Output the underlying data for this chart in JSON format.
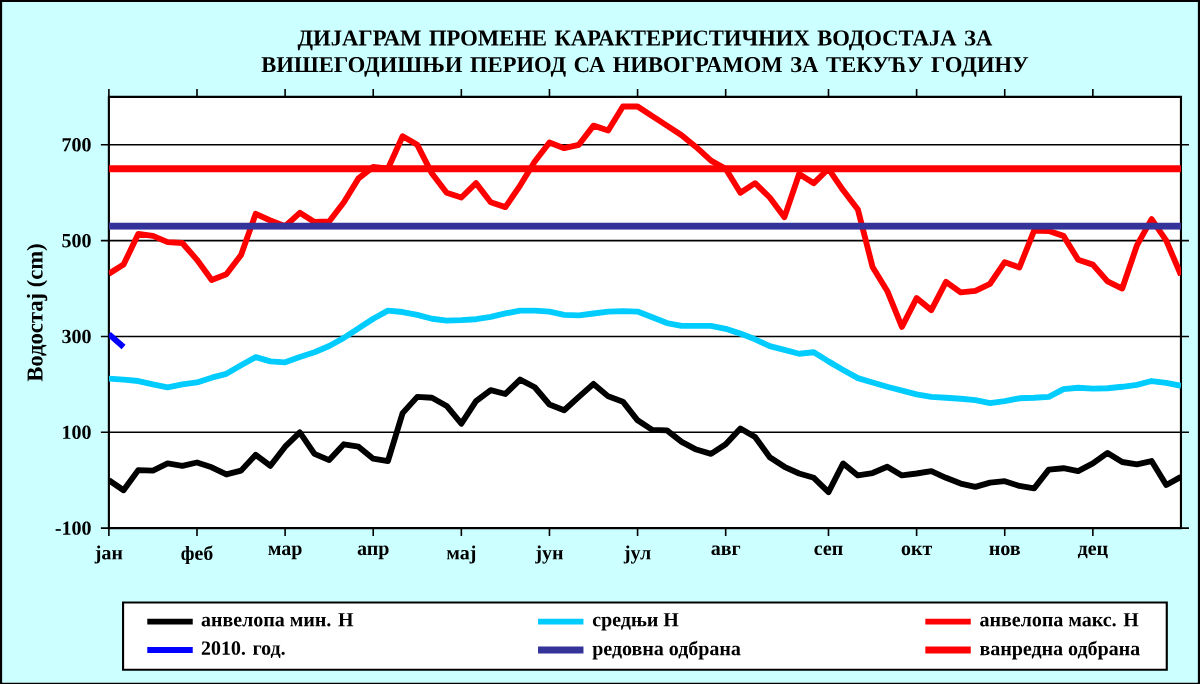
{
  "chart_data": {
    "type": "line",
    "title": "ДИЈАГРАМ ПРОМЕНЕ КАРАКТЕРИСТИЧНИХ ВОДОСТАЈА ЗА ВИШЕГОДИШЊИ ПЕРИОД СА НИВОГРАМОМ ЗА ТЕКУЋУ ГОДИНУ",
    "ylabel": "Водостај (cm)",
    "categories": [
      "јан",
      null,
      null,
      null,
      null,
      null,
      "феб",
      null,
      null,
      null,
      null,
      null,
      "мар",
      null,
      null,
      null,
      null,
      null,
      "апр",
      null,
      null,
      null,
      null,
      null,
      "мај",
      null,
      null,
      null,
      null,
      null,
      "јун",
      null,
      null,
      null,
      null,
      null,
      "јул",
      null,
      null,
      null,
      null,
      null,
      "авг",
      null,
      null,
      null,
      null,
      null,
      null,
      "сеп",
      null,
      null,
      null,
      null,
      null,
      "окт",
      null,
      null,
      null,
      null,
      null,
      "нов",
      null,
      null,
      null,
      null,
      null,
      "дец",
      null,
      null,
      null,
      null,
      null,
      null
    ],
    "ylim": [
      -100,
      800
    ],
    "yticks": [
      -100,
      100,
      300,
      500,
      700
    ],
    "grid": "y",
    "legend": "bottom",
    "series": [
      {
        "name": "анвелопа мин. H",
        "color": "#000000",
        "values": [
          0,
          -21,
          21,
          20,
          35,
          30,
          37,
          27,
          12,
          20,
          53,
          30,
          70,
          100,
          55,
          42,
          75,
          70,
          45,
          40,
          140,
          174,
          172,
          155,
          118,
          165,
          188,
          180,
          210,
          194,
          158,
          146,
          174,
          201,
          175,
          164,
          125,
          105,
          104,
          80,
          64,
          55,
          75,
          108,
          90,
          48,
          28,
          14,
          5,
          -25,
          35,
          10,
          15,
          28,
          10,
          14,
          19,
          5,
          -7,
          -14,
          -5,
          -2,
          -12,
          -17,
          22,
          25,
          19,
          35,
          57,
          38,
          33,
          40,
          -10,
          7
        ]
      },
      {
        "name": "средњи H",
        "color": "#00ccff",
        "values": [
          212,
          210,
          207,
          200,
          194,
          200,
          204,
          214,
          222,
          240,
          257,
          248,
          246,
          257,
          267,
          280,
          297,
          317,
          337,
          354,
          351,
          345,
          337,
          333,
          334,
          336,
          341,
          348,
          354,
          354,
          352,
          345,
          344,
          348,
          352,
          353,
          352,
          340,
          328,
          322,
          322,
          322,
          316,
          306,
          294,
          280,
          272,
          264,
          267,
          248,
          230,
          213,
          204,
          195,
          187,
          179,
          174,
          172,
          170,
          167,
          161,
          165,
          171,
          172,
          174,
          190,
          193,
          191,
          192,
          195,
          199,
          207,
          203,
          197
        ]
      },
      {
        "name": "анвелопа макс. H",
        "color": "#ff0000",
        "values": [
          431,
          450,
          514,
          510,
          497,
          495,
          460,
          418,
          430,
          470,
          556,
          542,
          530,
          558,
          539,
          540,
          580,
          630,
          654,
          650,
          718,
          700,
          640,
          600,
          590,
          620,
          580,
          570,
          615,
          665,
          705,
          693,
          700,
          740,
          730,
          780,
          780,
          760,
          740,
          720,
          695,
          667,
          650,
          600,
          620,
          590,
          549,
          639,
          620,
          650,
          605,
          565,
          445,
          395,
          320,
          380,
          355,
          414,
          392,
          395,
          410,
          455,
          444,
          521,
          520,
          510,
          460,
          450,
          415,
          400,
          490,
          545,
          500,
          428
        ]
      },
      {
        "name": "2010. год.",
        "color": "#0000ff",
        "values": [
          305,
          278,
          null,
          null,
          null,
          null,
          null,
          null,
          null,
          null,
          null,
          null,
          null,
          null,
          null,
          null,
          null,
          null,
          null,
          null,
          null,
          null,
          null,
          null,
          null,
          null,
          null,
          null,
          null,
          null,
          null,
          null,
          null,
          null,
          null,
          null,
          null,
          null,
          null,
          null,
          null,
          null,
          null,
          null,
          null,
          null,
          null,
          null,
          null,
          null,
          null,
          null,
          null,
          null,
          null,
          null,
          null,
          null,
          null,
          null,
          null,
          null,
          null,
          null,
          null,
          null,
          null,
          null,
          null,
          null,
          null,
          null,
          null,
          null
        ]
      }
    ],
    "ref_lines": [
      {
        "axis": "y",
        "value": 530,
        "label": "редовна одбрана",
        "color": "#333399"
      },
      {
        "axis": "y",
        "value": 650,
        "label": "ванредна одбрана",
        "color": "#ff0000"
      }
    ]
  }
}
